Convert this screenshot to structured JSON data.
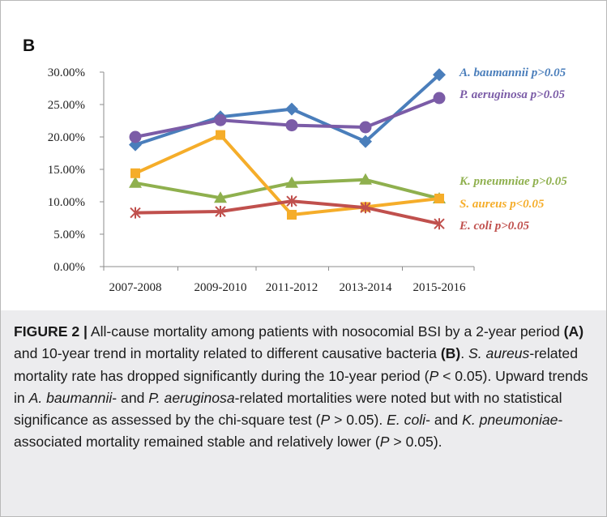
{
  "panel_label": "B",
  "chart_data": {
    "type": "line",
    "categories": [
      "2007-2008",
      "2009-2010",
      "2011-2012",
      "2013-2014",
      "2015-2016"
    ],
    "ylim": [
      0,
      30
    ],
    "yticks": [
      "0.00%",
      "5.00%",
      "10.00%",
      "15.00%",
      "20.00%",
      "25.00%",
      "30.00%"
    ],
    "grid": false,
    "legend": "right, inline labels at line ends",
    "series": [
      {
        "name": "A. baumannii p>0.05",
        "color": "#4a7ebb",
        "marker": "diamond",
        "values": [
          18.8,
          23.1,
          24.3,
          19.3,
          29.6
        ]
      },
      {
        "name": "P. aeruginosa p>0.05",
        "color": "#7b5ca7",
        "marker": "circle",
        "values": [
          20.0,
          22.6,
          21.8,
          21.5,
          26.0
        ]
      },
      {
        "name": "K. pneumniae p>0.05",
        "color": "#8fb04e",
        "marker": "triangle",
        "values": [
          12.9,
          10.6,
          12.9,
          13.4,
          10.5
        ]
      },
      {
        "name": "S. aureus p<0.05",
        "color": "#f5ad2a",
        "marker": "square",
        "values": [
          14.4,
          20.3,
          8.0,
          9.2,
          10.5
        ]
      },
      {
        "name": "E. coli p>0.05",
        "color": "#c0504d",
        "marker": "x",
        "values": [
          8.3,
          8.5,
          10.1,
          9.1,
          6.6
        ]
      }
    ]
  },
  "caption": {
    "fig_label": "FIGURE 2 |",
    "t1": " All-cause mortality among patients with nosocomial BSI by a 2-year period ",
    "a_label": "(A)",
    "t2": " and 10-year trend in mortality related to different causative bacteria ",
    "b_label": "(B)",
    "t3": ". ",
    "i1": "S. aureus",
    "t4": "-related mortality rate has dropped significantly during the 10-year period (",
    "i2": "P",
    "t5": " < 0.05). Upward trends in ",
    "i3": "A. baumannii",
    "t6": "- and ",
    "i4": "P. aeruginosa",
    "t7": "-related mortalities were noted but with no statistical significance as assessed by the chi-square test (",
    "i5": "P",
    "t8": " > 0.05). ",
    "i6": "E. coli",
    "t9": "- and ",
    "i7": "K. pneumoniae",
    "t10": "-associated mortality remained stable and relatively lower (",
    "i8": "P",
    "t11": " > 0.05)."
  }
}
